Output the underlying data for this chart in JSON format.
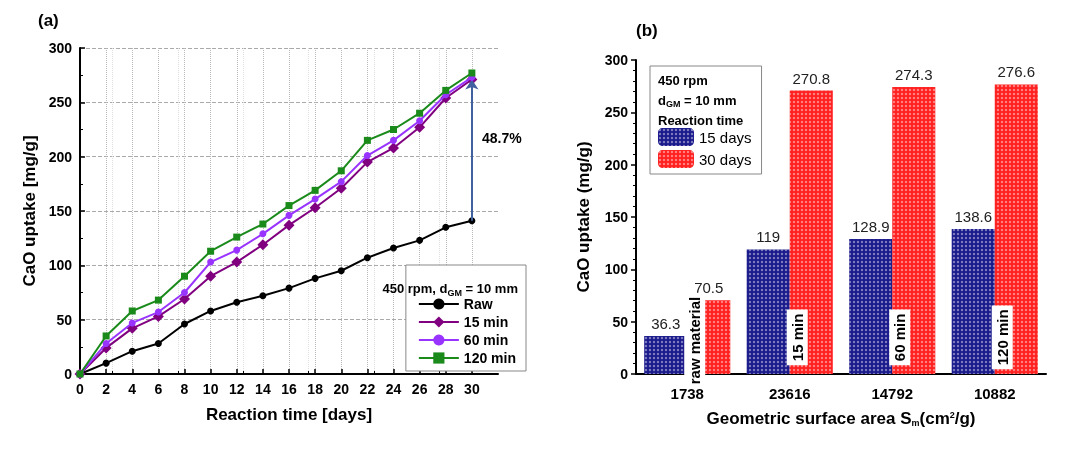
{
  "chart_data": [
    {
      "type": "line",
      "title": "(a)",
      "xlabel": "Reaction time [days]",
      "ylabel": "CaO uptake [mg/g]",
      "legend_title": "450 rpm, d$_{GM}$ = 10 mm",
      "x": [
        0,
        2,
        4,
        6,
        8,
        10,
        12,
        14,
        16,
        18,
        20,
        22,
        24,
        26,
        28,
        30
      ],
      "series": [
        {
          "name": "Raw",
          "color": "#000000",
          "marker": "circle",
          "values": [
            0,
            10,
            21,
            28,
            46,
            58,
            66,
            72,
            79,
            88,
            95,
            107,
            116,
            123,
            135,
            141
          ]
        },
        {
          "name": "15 min",
          "color": "#800080",
          "marker": "diamond",
          "values": [
            0,
            24,
            42,
            53,
            69,
            90,
            103,
            119,
            137,
            153,
            171,
            195,
            208,
            227,
            254,
            271
          ]
        },
        {
          "name": "60 min",
          "color": "#9933ff",
          "marker": "circle",
          "values": [
            0,
            28,
            47,
            57,
            75,
            103,
            114,
            129,
            146,
            161,
            177,
            201,
            215,
            233,
            257,
            273
          ]
        },
        {
          "name": "120 min",
          "color": "#1a8a1a",
          "marker": "square",
          "values": [
            0,
            35,
            58,
            68,
            90,
            113,
            126,
            138,
            155,
            169,
            187,
            215,
            225,
            240,
            261,
            277
          ]
        }
      ],
      "xlim": [
        0,
        32
      ],
      "xticks": [
        0,
        2,
        4,
        6,
        8,
        10,
        12,
        14,
        16,
        18,
        20,
        22,
        24,
        26,
        28,
        30
      ],
      "ylim": [
        0,
        300
      ],
      "yticks": [
        0,
        50,
        100,
        150,
        200,
        250,
        300
      ],
      "annotations": [
        "48.7%"
      ],
      "grid": true,
      "legend": "bottom right",
      "line_style": "solid"
    },
    {
      "type": "bar",
      "title": "(b)",
      "xlabel": "Geometric surface area S$_{m}$(cm$^{2}$/g)",
      "ylabel": "CaO uptake (mg/g)",
      "legend_title": "450 rpm\nd$_{GM}$ = 10 mm\nReaction time",
      "categories": [
        "1738",
        "23616",
        "14792",
        "10882"
      ],
      "series": [
        {
          "name": "15 days",
          "color": "#1a1a8c",
          "values": [
            36.3,
            119,
            128.9,
            138.6
          ]
        },
        {
          "name": "30 days",
          "color": "#ff2020",
          "values": [
            70.5,
            270.8,
            274.3,
            276.6
          ]
        }
      ],
      "ylim": [
        0,
        300
      ],
      "yticks": [
        0,
        50,
        100,
        150,
        200,
        250,
        300
      ],
      "annotations": [
        {
          "text": "raw material",
          "x": "1738",
          "y": 32
        },
        {
          "text": "15 min",
          "x": "23616",
          "y": 35
        },
        {
          "text": "60 min",
          "x": "14792",
          "y": 35
        },
        {
          "text": "120 min",
          "x": "10882",
          "y": 35
        }
      ],
      "data_labels": true,
      "grid": false,
      "legend": "top left"
    }
  ]
}
